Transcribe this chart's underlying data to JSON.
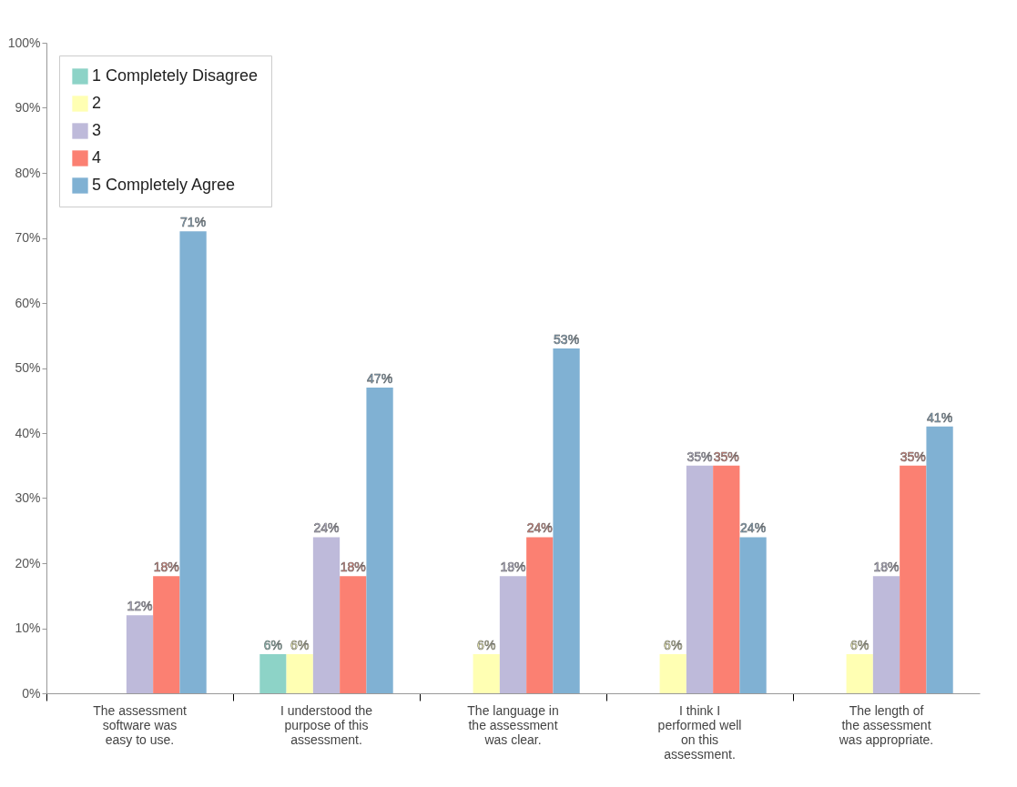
{
  "chart_data": {
    "type": "bar",
    "categories": [
      "The assessment software was easy to use.",
      "I understood the purpose of this assessment.",
      "The language in the assessment was clear.",
      "I think I performed well on this assessment.",
      "The length of the assessment was appropriate."
    ],
    "series": [
      {
        "name": "1 Completely Disagree",
        "color": "#8dd3c7",
        "values": [
          null,
          6,
          null,
          null,
          null
        ],
        "value_labels": [
          null,
          "6%",
          null,
          null,
          null
        ]
      },
      {
        "name": "2",
        "color": "#ffffb3",
        "values": [
          null,
          6,
          6,
          6,
          6
        ],
        "value_labels": [
          null,
          "6%",
          "6%",
          "6%",
          "6%"
        ]
      },
      {
        "name": "3",
        "color": "#bebada",
        "values": [
          12,
          24,
          18,
          35,
          18
        ],
        "value_labels": [
          "12%",
          "24%",
          "18%",
          "35%",
          "18%"
        ]
      },
      {
        "name": "4",
        "color": "#fb8072",
        "values": [
          18,
          18,
          24,
          35,
          35
        ],
        "value_labels": [
          "18%",
          "18%",
          "24%",
          "35%",
          "35%"
        ]
      },
      {
        "name": "5 Completely Agree",
        "color": "#80b1d3",
        "values": [
          71,
          47,
          53,
          24,
          41
        ],
        "value_labels": [
          "71%",
          "47%",
          "53%",
          "24%",
          "41%"
        ]
      }
    ],
    "ylim": [
      0,
      100
    ],
    "yticks": [
      {
        "value": 0,
        "label": "0%"
      },
      {
        "value": 10,
        "label": "10%"
      },
      {
        "value": 20,
        "label": "20%"
      },
      {
        "value": 30,
        "label": "30%"
      },
      {
        "value": 40,
        "label": "40%"
      },
      {
        "value": 50,
        "label": "50%"
      },
      {
        "value": 60,
        "label": "60%"
      },
      {
        "value": 70,
        "label": "70%"
      },
      {
        "value": 80,
        "label": "80%"
      },
      {
        "value": 90,
        "label": "90%"
      },
      {
        "value": 100,
        "label": "100%"
      }
    ],
    "grid": false,
    "legend": "top left"
  }
}
